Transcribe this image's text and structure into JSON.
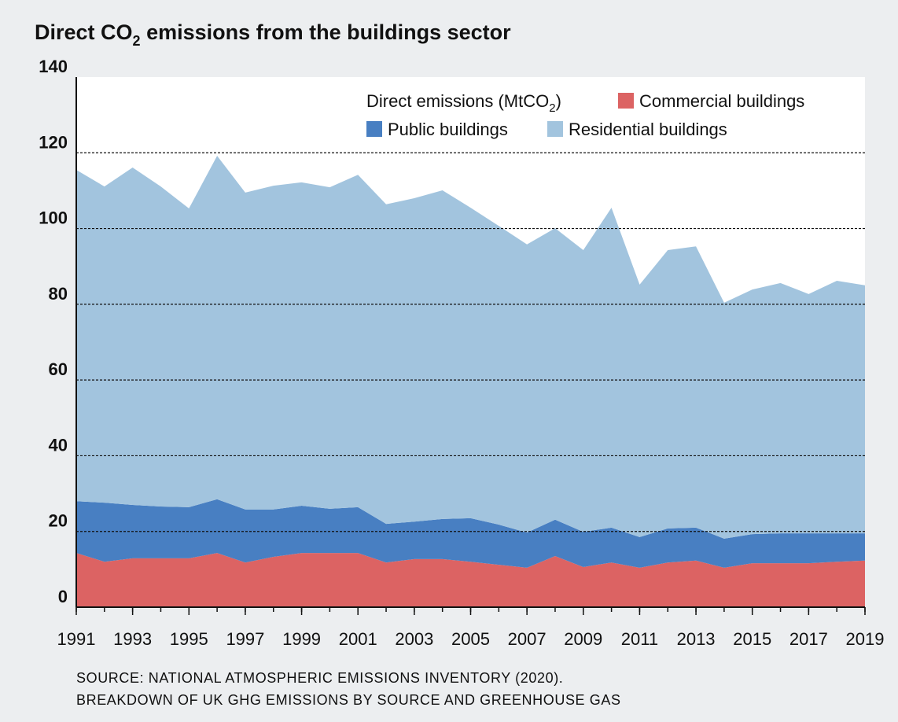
{
  "chart_data": {
    "type": "stacked-area",
    "title": [
      "Direct CO",
      "2",
      " emissions from the buildings sector"
    ],
    "legend_title": [
      "Direct emissions (MtCO",
      "2",
      ")"
    ],
    "source": [
      "SOURCE: NATIONAL ATMOSPHERIC EMISSIONS INVENTORY (2020).",
      "BREAKDOWN OF UK GHG EMISSIONS BY SOURCE AND GREENHOUSE GAS"
    ],
    "x": [
      1991,
      1992,
      1993,
      1994,
      1995,
      1996,
      1997,
      1998,
      1999,
      2000,
      2001,
      2002,
      2003,
      2004,
      2005,
      2006,
      2007,
      2008,
      2009,
      2010,
      2011,
      2012,
      2013,
      2014,
      2015,
      2016,
      2017,
      2018,
      2019
    ],
    "series": [
      {
        "name": "Commercial buildings",
        "color": "#dc6363",
        "values": [
          14.3,
          12.0,
          12.9,
          12.9,
          12.9,
          14.3,
          11.8,
          13.3,
          14.3,
          14.3,
          14.3,
          11.8,
          12.7,
          12.7,
          12.0,
          11.2,
          10.4,
          13.5,
          10.6,
          11.8,
          10.4,
          11.8,
          12.3,
          10.4,
          11.6,
          11.6,
          11.6,
          12.0,
          12.3
        ]
      },
      {
        "name": "Public buildings",
        "color": "#487fc2",
        "values": [
          13.7,
          15.6,
          14.1,
          13.7,
          13.5,
          14.2,
          14.0,
          12.5,
          12.5,
          11.7,
          12.1,
          10.2,
          9.9,
          10.6,
          11.5,
          10.6,
          9.3,
          9.6,
          9.3,
          9.2,
          8.1,
          9.0,
          8.7,
          7.7,
          7.7,
          7.9,
          7.9,
          7.5,
          7.2
        ]
      },
      {
        "name": "Residential buildings",
        "color": "#a2c4de",
        "values": [
          87.5,
          83.5,
          89.1,
          84.5,
          78.9,
          90.7,
          83.7,
          85.5,
          85.4,
          84.9,
          87.8,
          84.4,
          85.4,
          86.8,
          82.0,
          78.9,
          76.1,
          77.0,
          74.4,
          84.5,
          66.7,
          73.5,
          74.3,
          62.3,
          64.6,
          66.1,
          63.2,
          66.7,
          65.5
        ]
      }
    ],
    "xlim": [
      1991,
      2019
    ],
    "xticks": [
      1991,
      1993,
      1995,
      1997,
      1999,
      2001,
      2003,
      2005,
      2007,
      2009,
      2011,
      2013,
      2015,
      2017,
      2019
    ],
    "ylim": [
      0,
      140
    ],
    "yticks": [
      0,
      20,
      40,
      60,
      80,
      100,
      120,
      140
    ],
    "grid": true
  }
}
